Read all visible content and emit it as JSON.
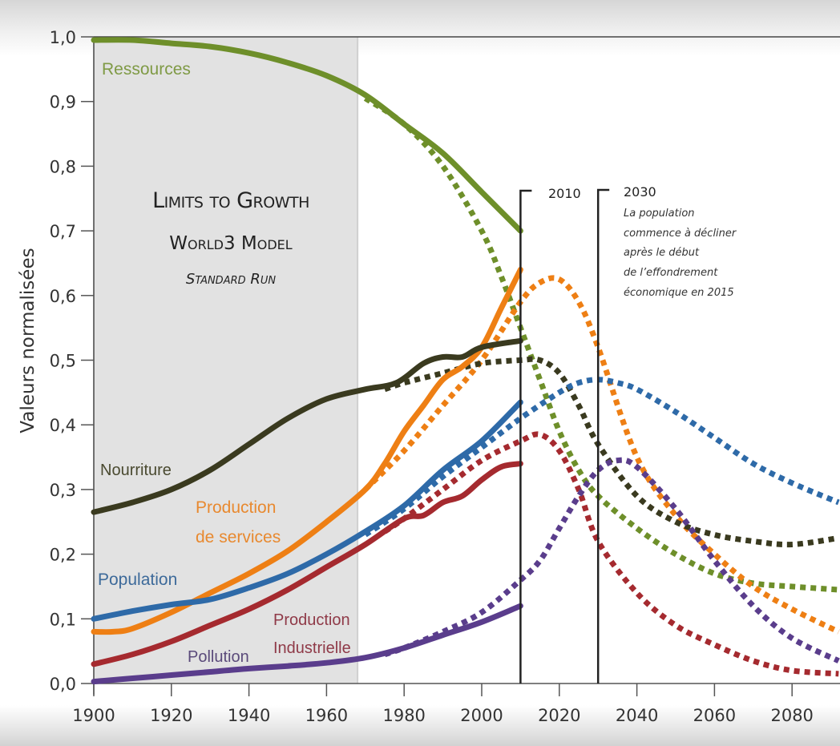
{
  "chart_data": {
    "type": "line",
    "title": {
      "line1": "Limits to Growth",
      "line2": "World3 Model",
      "line3": "Standard Run"
    },
    "xlabel": "",
    "ylabel": "Valeurs normalisées",
    "xlim": [
      1900,
      2092
    ],
    "ylim": [
      0.0,
      1.0
    ],
    "x_ticks": [
      "1900",
      "1920",
      "1940",
      "1960",
      "1980",
      "2000",
      "2020",
      "2040",
      "2060",
      "2080"
    ],
    "x_tick_values": [
      1900,
      1920,
      1940,
      1960,
      1980,
      2000,
      2020,
      2040,
      2060,
      2080
    ],
    "y_ticks": [
      "0,0",
      "0,1",
      "0,2",
      "0,3",
      "0,4",
      "0,5",
      "0,6",
      "0,7",
      "0,8",
      "0,9",
      "1,0"
    ],
    "y_tick_values": [
      0,
      0.1,
      0.2,
      0.3,
      0.4,
      0.5,
      0.6,
      0.7,
      0.8,
      0.9,
      1.0
    ],
    "shaded_range": [
      1900,
      1968
    ],
    "annotations": [
      {
        "year": 2010,
        "label": "2010",
        "text": []
      },
      {
        "year": 2030,
        "label": "2030",
        "text": [
          "La population",
          "commence à décliner",
          "après le début",
          "de l’effondrement",
          "économique en 2015"
        ]
      }
    ],
    "series": [
      {
        "name": "Ressources",
        "color": "#6e8f2a",
        "label_color": "#7f9a45",
        "observed": {
          "x": [
            1900,
            1910,
            1920,
            1930,
            1940,
            1950,
            1960,
            1970,
            1980,
            1990,
            2000,
            2010
          ],
          "y": [
            0.995,
            0.995,
            0.99,
            0.985,
            0.975,
            0.96,
            0.94,
            0.91,
            0.865,
            0.82,
            0.76,
            0.7
          ]
        },
        "model": {
          "x": [
            1970,
            1980,
            1990,
            2000,
            2005,
            2010,
            2015,
            2020,
            2025,
            2030,
            2040,
            2050,
            2060,
            2070,
            2080,
            2092
          ],
          "y": [
            0.905,
            0.865,
            0.8,
            0.7,
            0.63,
            0.55,
            0.47,
            0.39,
            0.33,
            0.29,
            0.24,
            0.2,
            0.17,
            0.155,
            0.15,
            0.145
          ]
        }
      },
      {
        "name": "Production de services",
        "color": "#ee7f14",
        "label_color": "#e8892f",
        "observed": {
          "x": [
            1900,
            1905,
            1910,
            1920,
            1930,
            1940,
            1950,
            1960,
            1970,
            1975,
            1980,
            1985,
            1990,
            1995,
            2000,
            2005,
            2010
          ],
          "y": [
            0.08,
            0.08,
            0.085,
            0.11,
            0.14,
            0.17,
            0.205,
            0.25,
            0.3,
            0.34,
            0.39,
            0.43,
            0.47,
            0.49,
            0.52,
            0.58,
            0.64
          ]
        },
        "model": {
          "x": [
            1970,
            1980,
            1990,
            2000,
            2010,
            2015,
            2020,
            2025,
            2030,
            2040,
            2050,
            2060,
            2070,
            2080,
            2092
          ],
          "y": [
            0.3,
            0.36,
            0.43,
            0.5,
            0.59,
            0.62,
            0.625,
            0.59,
            0.52,
            0.35,
            0.26,
            0.2,
            0.15,
            0.115,
            0.08
          ]
        }
      },
      {
        "name": "Nourriture",
        "color": "#3a3a1f",
        "label_color": "#4a4a30",
        "observed": {
          "x": [
            1900,
            1910,
            1920,
            1930,
            1940,
            1950,
            1960,
            1970,
            1978,
            1985,
            1990,
            1995,
            2000,
            2010
          ],
          "y": [
            0.265,
            0.28,
            0.3,
            0.33,
            0.37,
            0.41,
            0.44,
            0.455,
            0.465,
            0.495,
            0.505,
            0.505,
            0.52,
            0.53
          ]
        },
        "model": {
          "x": [
            1975,
            1980,
            1990,
            2000,
            2010,
            2015,
            2020,
            2025,
            2030,
            2040,
            2050,
            2060,
            2070,
            2080,
            2092
          ],
          "y": [
            0.455,
            0.465,
            0.48,
            0.495,
            0.5,
            0.5,
            0.48,
            0.43,
            0.37,
            0.29,
            0.25,
            0.23,
            0.22,
            0.215,
            0.225
          ]
        }
      },
      {
        "name": "Population",
        "color": "#2e6aa8",
        "label_color": "#3d6a9a",
        "observed": {
          "x": [
            1900,
            1910,
            1920,
            1930,
            1940,
            1950,
            1960,
            1970,
            1980,
            1990,
            2000,
            2010
          ],
          "y": [
            0.1,
            0.112,
            0.122,
            0.13,
            0.148,
            0.17,
            0.2,
            0.235,
            0.275,
            0.33,
            0.375,
            0.435
          ]
        },
        "model": {
          "x": [
            1970,
            1980,
            1990,
            2000,
            2010,
            2020,
            2025,
            2030,
            2035,
            2040,
            2050,
            2060,
            2070,
            2080,
            2092
          ],
          "y": [
            0.23,
            0.27,
            0.32,
            0.365,
            0.41,
            0.45,
            0.465,
            0.47,
            0.465,
            0.455,
            0.42,
            0.38,
            0.34,
            0.31,
            0.28
          ]
        }
      },
      {
        "name": "Production Industrielle",
        "color": "#a52a2f",
        "label_color": "#8f3a48",
        "observed": {
          "x": [
            1900,
            1910,
            1920,
            1930,
            1940,
            1950,
            1960,
            1970,
            1980,
            1985,
            1990,
            1995,
            2000,
            2005,
            2010
          ],
          "y": [
            0.03,
            0.045,
            0.065,
            0.09,
            0.115,
            0.145,
            0.18,
            0.215,
            0.255,
            0.26,
            0.28,
            0.29,
            0.315,
            0.335,
            0.34
          ]
        },
        "model": {
          "x": [
            1975,
            1980,
            1990,
            2000,
            2010,
            2015,
            2020,
            2025,
            2030,
            2040,
            2050,
            2060,
            2070,
            2080,
            2092
          ],
          "y": [
            0.235,
            0.255,
            0.3,
            0.345,
            0.375,
            0.385,
            0.36,
            0.3,
            0.22,
            0.14,
            0.09,
            0.06,
            0.035,
            0.02,
            0.015
          ]
        }
      },
      {
        "name": "Pollution",
        "color": "#5a3d8c",
        "label_color": "#5a4a7a",
        "observed": {
          "x": [
            1900,
            1910,
            1920,
            1930,
            1940,
            1950,
            1960,
            1970,
            1980,
            1990,
            2000,
            2010
          ],
          "y": [
            0.003,
            0.008,
            0.013,
            0.018,
            0.023,
            0.027,
            0.032,
            0.04,
            0.055,
            0.075,
            0.095,
            0.12
          ]
        },
        "model": {
          "x": [
            1975,
            1980,
            1990,
            2000,
            2010,
            2015,
            2020,
            2025,
            2030,
            2035,
            2040,
            2050,
            2060,
            2070,
            2080,
            2092
          ],
          "y": [
            0.045,
            0.055,
            0.08,
            0.11,
            0.16,
            0.19,
            0.24,
            0.29,
            0.33,
            0.345,
            0.335,
            0.27,
            0.19,
            0.12,
            0.07,
            0.035
          ]
        }
      }
    ]
  }
}
